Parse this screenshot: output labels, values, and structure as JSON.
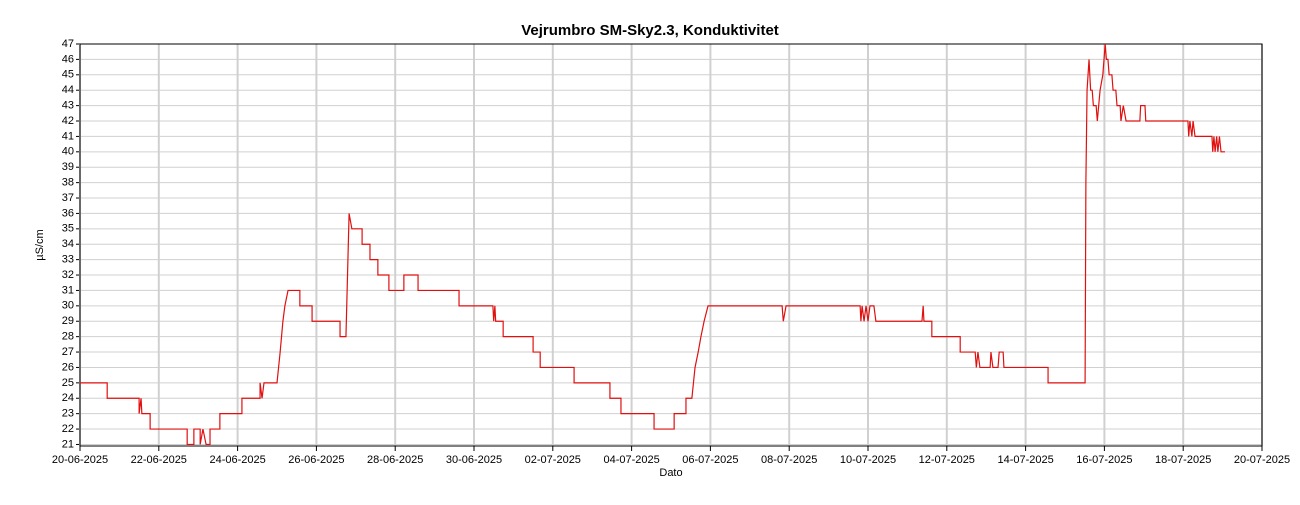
{
  "chart_data": {
    "type": "line",
    "title": "Vejrumbro SM-Sky2.3, Konduktivitet",
    "x_label": "Dato",
    "y_label": "µS/cm",
    "color": "#e01010",
    "grid": true,
    "xlim": [
      0,
      30
    ],
    "xticks": [
      {
        "value": 0,
        "label": "20-06-2025"
      },
      {
        "value": 2,
        "label": "22-06-2025"
      },
      {
        "value": 4,
        "label": "24-06-2025"
      },
      {
        "value": 6,
        "label": "26-06-2025"
      },
      {
        "value": 8,
        "label": "28-06-2025"
      },
      {
        "value": 10,
        "label": "30-06-2025"
      },
      {
        "value": 12,
        "label": "02-07-2025"
      },
      {
        "value": 14,
        "label": "04-07-2025"
      },
      {
        "value": 16,
        "label": "06-07-2025"
      },
      {
        "value": 18,
        "label": "08-07-2025"
      },
      {
        "value": 20,
        "label": "10-07-2025"
      },
      {
        "value": 22,
        "label": "12-07-2025"
      },
      {
        "value": 24,
        "label": "14-07-2025"
      },
      {
        "value": 26,
        "label": "16-07-2025"
      },
      {
        "value": 28,
        "label": "18-07-2025"
      },
      {
        "value": 30,
        "label": "20-07-2025"
      }
    ],
    "ylim": [
      20.9,
      47
    ],
    "yticks": [
      21,
      22,
      23,
      24,
      25,
      26,
      27,
      28,
      29,
      30,
      31,
      32,
      33,
      34,
      35,
      36,
      37,
      38,
      39,
      40,
      41,
      42,
      43,
      44,
      45,
      46,
      47
    ],
    "x": [
      0,
      0.69,
      0.69,
      1.5,
      1.5,
      1.55,
      1.57,
      1.78,
      1.78,
      2.72,
      2.72,
      2.89,
      2.89,
      3.05,
      3.05,
      3.12,
      3.2,
      3.3,
      3.3,
      3.55,
      3.55,
      4.11,
      4.11,
      4.57,
      4.57,
      4.62,
      4.67,
      5.0,
      5.08,
      5.15,
      5.2,
      5.28,
      5.58,
      5.58,
      5.89,
      5.89,
      6.6,
      6.6,
      6.75,
      6.83,
      6.9,
      7.16,
      7.16,
      7.36,
      7.36,
      7.56,
      7.56,
      7.84,
      7.84,
      8.22,
      8.22,
      8.58,
      8.58,
      9.62,
      9.62,
      10.48,
      10.5,
      10.53,
      10.55,
      10.74,
      10.74,
      11.5,
      11.5,
      11.68,
      11.68,
      12.54,
      12.54,
      13.45,
      13.45,
      13.73,
      13.73,
      14.57,
      14.57,
      15.08,
      15.08,
      15.38,
      15.38,
      15.53,
      15.61,
      15.69,
      15.76,
      15.84,
      15.94,
      17.82,
      17.85,
      17.92,
      19.8,
      19.82,
      19.85,
      19.9,
      19.95,
      20.0,
      20.05,
      20.15,
      20.2,
      21.37,
      21.4,
      21.42,
      21.62,
      21.62,
      22.34,
      22.34,
      22.72,
      22.75,
      22.79,
      22.84,
      23.1,
      23.12,
      23.17,
      23.3,
      23.33,
      23.43,
      23.45,
      24.57,
      24.57,
      25.51,
      25.53,
      25.56,
      25.61,
      25.65,
      25.69,
      25.72,
      25.79,
      25.82,
      25.89,
      25.96,
      26.02,
      26.05,
      26.09,
      26.12,
      26.19,
      26.22,
      26.29,
      26.32,
      26.4,
      26.42,
      26.48,
      26.55,
      26.9,
      26.92,
      27.03,
      27.05,
      28.12,
      28.14,
      28.17,
      28.22,
      28.25,
      28.3,
      28.73,
      28.75,
      28.78,
      28.81,
      28.85,
      28.88,
      28.92,
      28.96,
      29.06
    ],
    "values": [
      25,
      25,
      24,
      24,
      23,
      24,
      23,
      23,
      22,
      22,
      21,
      21,
      22,
      22,
      21,
      22,
      21,
      21,
      22,
      22,
      23,
      23,
      24,
      24,
      25,
      24,
      25,
      25,
      27,
      29,
      30,
      31,
      31,
      30,
      30,
      29,
      29,
      28,
      28,
      36,
      35,
      35,
      34,
      34,
      33,
      33,
      32,
      32,
      31,
      31,
      32,
      32,
      31,
      31,
      30,
      30,
      29,
      30,
      29,
      29,
      28,
      28,
      27,
      27,
      26,
      26,
      25,
      25,
      24,
      24,
      23,
      23,
      22,
      22,
      23,
      23,
      24,
      24,
      26,
      27,
      28,
      29,
      30,
      30,
      29,
      30,
      30,
      29,
      30,
      29,
      30,
      29,
      30,
      30,
      29,
      29,
      30,
      29,
      29,
      28,
      28,
      27,
      27,
      26,
      27,
      26,
      26,
      27,
      26,
      26,
      27,
      27,
      26,
      26,
      25,
      25,
      38,
      44,
      46,
      44,
      44,
      43,
      43,
      42,
      44,
      45,
      47,
      46,
      46,
      45,
      45,
      44,
      44,
      43,
      43,
      42,
      43,
      42,
      42,
      43,
      43,
      42,
      42,
      41,
      42,
      41,
      42,
      41,
      41,
      40,
      41,
      40,
      41,
      40,
      41,
      40,
      40
    ]
  }
}
